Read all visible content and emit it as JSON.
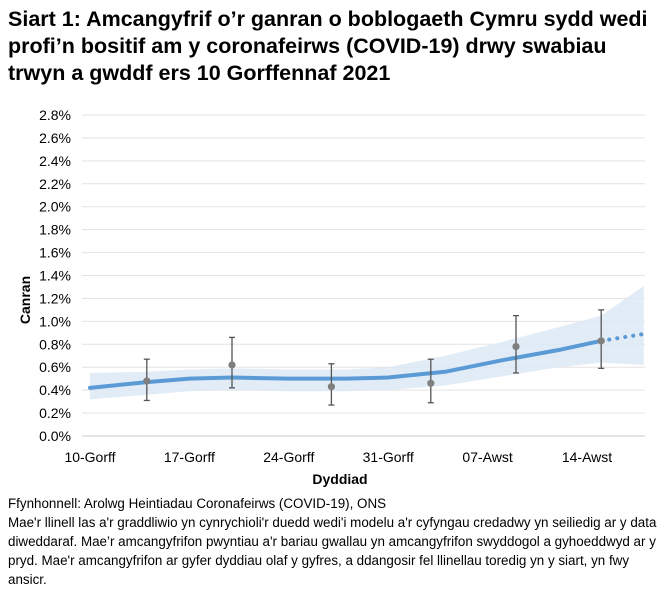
{
  "title": "Siart 1: Amcangyfrif o’r ganran o boblogaeth Cymru sydd wedi profi’n bositif am y coronafeirws (COVID-19) drwy swabiau trwyn a gwddf ers 10 Gorffennaf 2021",
  "chart_data": {
    "type": "line",
    "title": "Siart 1: Amcangyfrif o’r ganran o boblogaeth Cymru sydd wedi profi’n bositif am y coronafeirws (COVID-19) drwy swabiau trwyn a gwddf ers 10 Gorffennaf 2021",
    "xlabel": "Dyddiad",
    "ylabel": "Canran",
    "ylim": [
      0,
      2.8
    ],
    "yticks": [
      "0.0%",
      "0.2%",
      "0.4%",
      "0.6%",
      "0.8%",
      "1.0%",
      "1.2%",
      "1.4%",
      "1.6%",
      "1.8%",
      "2.0%",
      "2.2%",
      "2.4%",
      "2.6%",
      "2.8%"
    ],
    "xticks": [
      "10-Gorff",
      "17-Gorff",
      "24-Gorff",
      "31-Gorff",
      "07-Awst",
      "14-Awst"
    ],
    "xtick_dates": [
      "2021-07-10",
      "2021-07-17",
      "2021-07-24",
      "2021-07-31",
      "2021-08-07",
      "2021-08-14"
    ],
    "grid": true,
    "line_color": "#5b9bd5",
    "band_color": "#dde9f6",
    "point_color": "#7f7f7f",
    "trend": {
      "dates": [
        "2021-07-10",
        "2021-07-14",
        "2021-07-17",
        "2021-07-20",
        "2021-07-24",
        "2021-07-28",
        "2021-07-31",
        "2021-08-04",
        "2021-08-08",
        "2021-08-12",
        "2021-08-15",
        "2021-08-18"
      ],
      "values": [
        0.42,
        0.47,
        0.5,
        0.51,
        0.5,
        0.5,
        0.51,
        0.56,
        0.66,
        0.75,
        0.83,
        0.89
      ],
      "lower": [
        0.32,
        0.36,
        0.39,
        0.4,
        0.39,
        0.39,
        0.4,
        0.44,
        0.52,
        0.6,
        0.64,
        0.62
      ],
      "upper": [
        0.55,
        0.56,
        0.58,
        0.59,
        0.58,
        0.58,
        0.6,
        0.7,
        0.82,
        0.95,
        1.05,
        1.31
      ],
      "solid_until": "2021-08-15"
    },
    "points": {
      "dates": [
        "2021-07-14",
        "2021-07-20",
        "2021-07-27",
        "2021-08-03",
        "2021-08-09",
        "2021-08-15"
      ],
      "values": [
        0.48,
        0.62,
        0.43,
        0.46,
        0.78,
        0.83
      ],
      "lower": [
        0.31,
        0.42,
        0.27,
        0.29,
        0.55,
        0.59
      ],
      "upper": [
        0.67,
        0.86,
        0.63,
        0.67,
        1.05,
        1.1
      ]
    }
  },
  "footer": {
    "source": "Ffynhonnell: Arolwg Heintiadau Coronafeirws (COVID-19), ONS",
    "note": "Mae'r llinell las a'r graddliwio yn cynrychioli'r duedd wedi'i modelu a'r cyfyngau credadwy yn seiliedig ar y data diweddaraf. Mae’r amcangyfrifon pwyntiau a'r bariau gwallau yn amcangyfrifon swyddogol a gyhoeddwyd ar y pryd. Mae'r amcangyfrifon ar gyfer dyddiau olaf y gyfres, a ddangosir fel llinellau toredig yn y siart, yn fwy ansicr."
  }
}
